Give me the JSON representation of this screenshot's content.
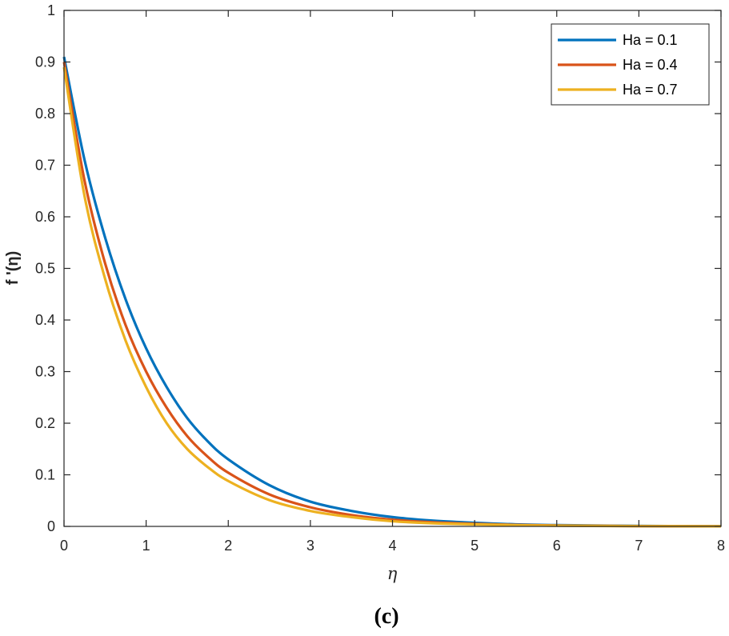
{
  "chart_data": {
    "type": "line",
    "xlabel": "η",
    "ylabel": "f '(η)",
    "caption": "(c)",
    "xlim": [
      0,
      8
    ],
    "ylim": [
      0,
      1
    ],
    "xticks": [
      "0",
      "1",
      "2",
      "3",
      "4",
      "5",
      "6",
      "7",
      "8"
    ],
    "yticks": [
      "0",
      "0.1",
      "0.2",
      "0.3",
      "0.4",
      "0.5",
      "0.6",
      "0.7",
      "0.8",
      "0.9",
      "1"
    ],
    "grid": false,
    "legend_position": "top-right",
    "x": [
      0,
      0.25,
      0.5,
      0.75,
      1,
      1.25,
      1.5,
      1.75,
      2,
      2.5,
      3,
      3.5,
      4,
      4.5,
      5,
      5.5,
      6,
      7,
      8
    ],
    "series": [
      {
        "name": "Ha = 0.1",
        "color": "#0072BD",
        "values": [
          0.91,
          0.71,
          0.56,
          0.44,
          0.345,
          0.27,
          0.21,
          0.165,
          0.13,
          0.08,
          0.048,
          0.03,
          0.018,
          0.011,
          0.007,
          0.004,
          0.0025,
          0.001,
          0.0004
        ]
      },
      {
        "name": "Ha = 0.4",
        "color": "#D95319",
        "values": [
          0.9,
          0.67,
          0.51,
          0.39,
          0.3,
          0.23,
          0.175,
          0.135,
          0.104,
          0.062,
          0.037,
          0.022,
          0.013,
          0.008,
          0.005,
          0.003,
          0.0018,
          0.0006,
          0.0002
        ]
      },
      {
        "name": "Ha = 0.7",
        "color": "#EDB120",
        "values": [
          0.89,
          0.64,
          0.48,
          0.36,
          0.27,
          0.2,
          0.15,
          0.115,
          0.088,
          0.051,
          0.03,
          0.018,
          0.01,
          0.006,
          0.004,
          0.0024,
          0.0014,
          0.0005,
          0.0002
        ]
      }
    ]
  }
}
